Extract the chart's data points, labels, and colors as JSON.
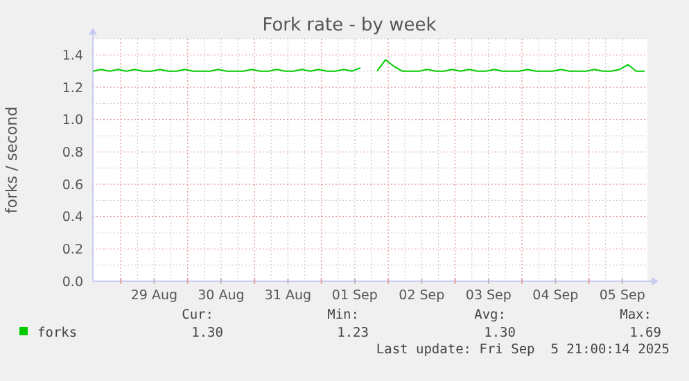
{
  "chart_data": {
    "type": "line",
    "title": "Fork rate - by week",
    "ylabel": "forks / second",
    "x": [
      "2025-08-28T14:00",
      "2025-08-28T17:00",
      "2025-08-28T20:00",
      "2025-08-28T23:00",
      "2025-08-29T02:00",
      "2025-08-29T05:00",
      "2025-08-29T08:00",
      "2025-08-29T11:00",
      "2025-08-29T14:00",
      "2025-08-29T17:00",
      "2025-08-29T20:00",
      "2025-08-29T23:00",
      "2025-08-30T02:00",
      "2025-08-30T05:00",
      "2025-08-30T08:00",
      "2025-08-30T11:00",
      "2025-08-30T14:00",
      "2025-08-30T17:00",
      "2025-08-30T20:00",
      "2025-08-30T23:00",
      "2025-08-31T02:00",
      "2025-08-31T05:00",
      "2025-08-31T08:00",
      "2025-08-31T11:00",
      "2025-08-31T14:00",
      "2025-08-31T17:00",
      "2025-08-31T20:00",
      "2025-08-31T23:00",
      "2025-09-01T02:00",
      "2025-09-01T05:00",
      "2025-09-01T08:00",
      "2025-09-01T11:00",
      "2025-09-01T14:00",
      "2025-09-01T17:00",
      "2025-09-01T20:00",
      "2025-09-01T23:00",
      "2025-09-02T02:00",
      "2025-09-02T05:00",
      "2025-09-02T08:00",
      "2025-09-02T11:00",
      "2025-09-02T14:00",
      "2025-09-02T17:00",
      "2025-09-02T20:00",
      "2025-09-02T23:00",
      "2025-09-03T02:00",
      "2025-09-03T05:00",
      "2025-09-03T08:00",
      "2025-09-03T11:00",
      "2025-09-03T14:00",
      "2025-09-03T17:00",
      "2025-09-03T20:00",
      "2025-09-03T23:00",
      "2025-09-04T02:00",
      "2025-09-04T05:00",
      "2025-09-04T08:00",
      "2025-09-04T11:00",
      "2025-09-04T14:00",
      "2025-09-04T17:00",
      "2025-09-04T20:00",
      "2025-09-04T23:00",
      "2025-09-05T02:00",
      "2025-09-05T05:00",
      "2025-09-05T08:00",
      "2025-09-05T11:00",
      "2025-09-05T14:00",
      "2025-09-05T17:00",
      "2025-09-05T20:00"
    ],
    "series": [
      {
        "name": "forks",
        "color": "#00cc00",
        "values": [
          1.3,
          1.31,
          1.3,
          1.31,
          1.3,
          1.31,
          1.3,
          1.3,
          1.31,
          1.3,
          1.3,
          1.31,
          1.3,
          1.3,
          1.3,
          1.31,
          1.3,
          1.3,
          1.3,
          1.31,
          1.3,
          1.3,
          1.31,
          1.3,
          1.3,
          1.31,
          1.3,
          1.31,
          1.3,
          1.3,
          1.31,
          1.3,
          1.32,
          null,
          1.3,
          1.37,
          1.33,
          1.3,
          1.3,
          1.3,
          1.31,
          1.3,
          1.3,
          1.31,
          1.3,
          1.31,
          1.3,
          1.3,
          1.31,
          1.3,
          1.3,
          1.3,
          1.31,
          1.3,
          1.3,
          1.3,
          1.31,
          1.3,
          1.3,
          1.3,
          1.31,
          1.3,
          1.3,
          1.31,
          1.34,
          1.3,
          1.3
        ]
      }
    ],
    "xlim": [
      "2025-08-28T14:00",
      "2025-09-05T21:00"
    ],
    "xticks": [
      {
        "value": "2025-08-29T00:00",
        "label": null
      },
      {
        "value": "2025-08-29T12:00",
        "label": "29 Aug"
      },
      {
        "value": "2025-08-30T00:00",
        "label": null
      },
      {
        "value": "2025-08-30T12:00",
        "label": "30 Aug"
      },
      {
        "value": "2025-08-31T00:00",
        "label": null
      },
      {
        "value": "2025-08-31T12:00",
        "label": "31 Aug"
      },
      {
        "value": "2025-09-01T00:00",
        "label": null
      },
      {
        "value": "2025-09-01T12:00",
        "label": "01 Sep"
      },
      {
        "value": "2025-09-02T00:00",
        "label": null
      },
      {
        "value": "2025-09-02T12:00",
        "label": "02 Sep"
      },
      {
        "value": "2025-09-03T00:00",
        "label": null
      },
      {
        "value": "2025-09-03T12:00",
        "label": "03 Sep"
      },
      {
        "value": "2025-09-04T00:00",
        "label": null
      },
      {
        "value": "2025-09-04T12:00",
        "label": "04 Sep"
      },
      {
        "value": "2025-09-05T00:00",
        "label": null
      },
      {
        "value": "2025-09-05T12:00",
        "label": "05 Sep"
      }
    ],
    "ylim": [
      0,
      1.5
    ],
    "yticks": [
      {
        "value": 0,
        "label": "0.0"
      },
      {
        "value": 0.2,
        "label": "0.2"
      },
      {
        "value": 0.4,
        "label": "0.4"
      },
      {
        "value": 0.6,
        "label": "0.6"
      },
      {
        "value": 0.8,
        "label": "0.8"
      },
      {
        "value": 1.0,
        "label": "1.0"
      },
      {
        "value": 1.2,
        "label": "1.2"
      },
      {
        "value": 1.4,
        "label": "1.4"
      }
    ],
    "grid": true,
    "legend": "bottom",
    "annotations": [
      "Cur:",
      "Min:",
      "Avg:",
      "Max:",
      "1.30",
      "1.23",
      "1.30",
      "1.69",
      "Last update: Fri Sep  5 21:00:14 2025"
    ]
  }
}
